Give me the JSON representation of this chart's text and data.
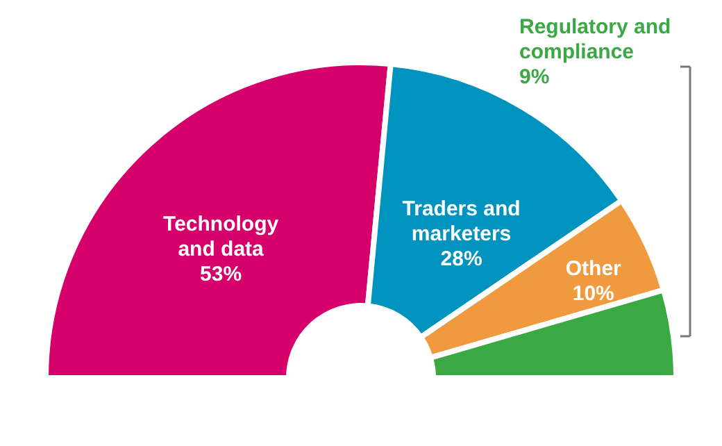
{
  "chart_data": {
    "type": "donut",
    "categories": [
      "Technology and data",
      "Traders and marketers",
      "Other",
      "Regulatory and compliance"
    ],
    "values": [
      53,
      28,
      10,
      9
    ],
    "colors": [
      "#d6006b",
      "#0093bf",
      "#f09a40",
      "#3aa843"
    ],
    "value_labels": [
      "53%",
      "28%",
      "10%",
      "9%"
    ]
  }
}
